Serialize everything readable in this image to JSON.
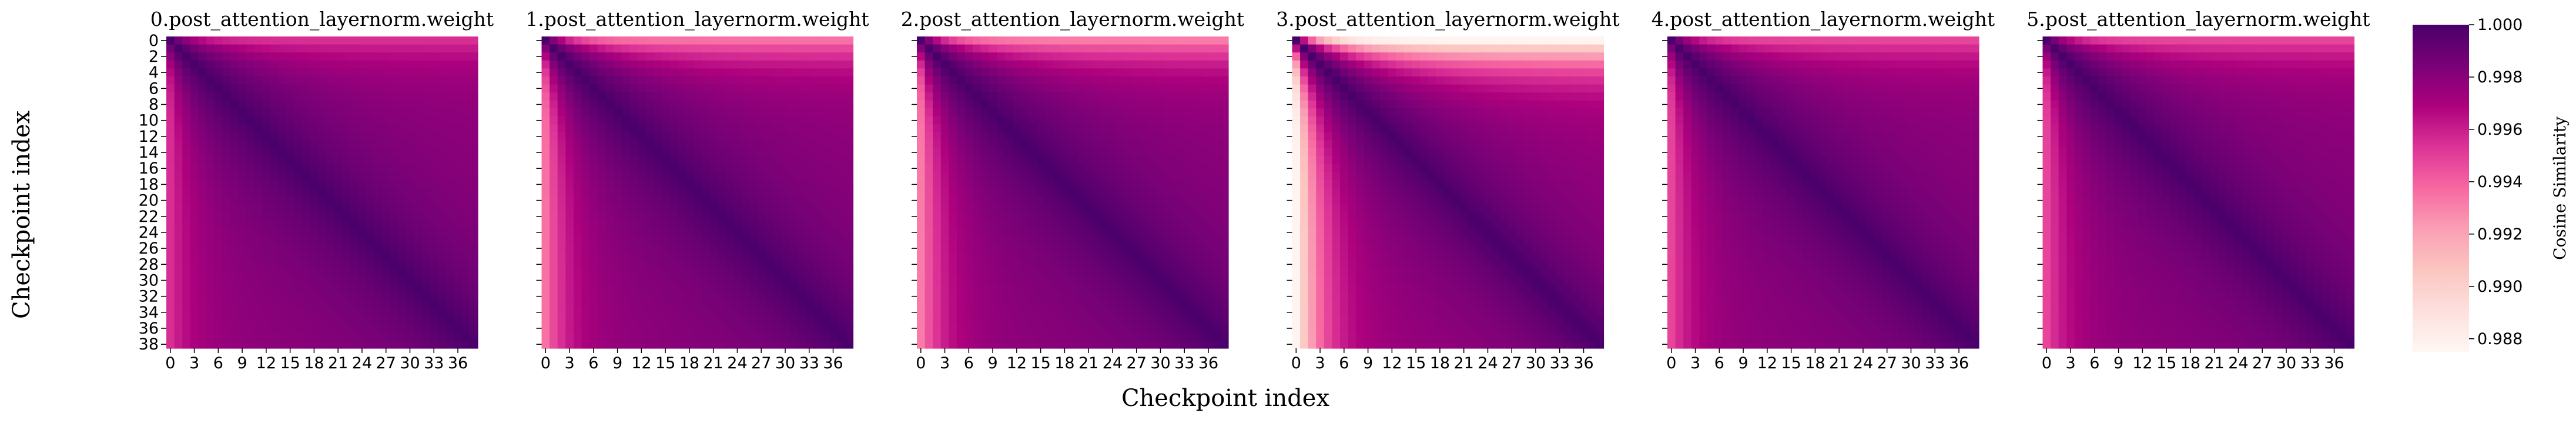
{
  "chart_data": {
    "type": "heatmap",
    "xlabel": "Checkpoint index",
    "ylabel": "Checkpoint index",
    "n": 39,
    "x_ticks": [
      "0",
      "3",
      "6",
      "9",
      "12",
      "15",
      "18",
      "21",
      "24",
      "27",
      "30",
      "33",
      "36"
    ],
    "y_ticks": [
      "0",
      "2",
      "4",
      "6",
      "8",
      "10",
      "12",
      "14",
      "16",
      "18",
      "20",
      "22",
      "24",
      "26",
      "28",
      "30",
      "32",
      "34",
      "36",
      "38"
    ],
    "colorbar": {
      "label": "Cosine Similarity",
      "colormap": "RdPu",
      "vmin": 0.9875,
      "vmax": 1.0,
      "ticks": [
        "1.000",
        "0.998",
        "0.996",
        "0.994",
        "0.992",
        "0.990",
        "0.988"
      ]
    },
    "panels": [
      {
        "title": "0.post_attention_layernorm.weight",
        "early_min": 0.9955,
        "late_min": 0.9978
      },
      {
        "title": "1.post_attention_layernorm.weight",
        "early_min": 0.9935,
        "late_min": 0.9978
      },
      {
        "title": "2.post_attention_layernorm.weight",
        "early_min": 0.9932,
        "late_min": 0.9978
      },
      {
        "title": "3.post_attention_layernorm.weight",
        "early_min": 0.9877,
        "late_min": 0.9975
      },
      {
        "title": "4.post_attention_layernorm.weight",
        "early_min": 0.9948,
        "late_min": 0.9978
      },
      {
        "title": "5.post_attention_layernorm.weight",
        "early_min": 0.9948,
        "late_min": 0.9978
      }
    ]
  }
}
